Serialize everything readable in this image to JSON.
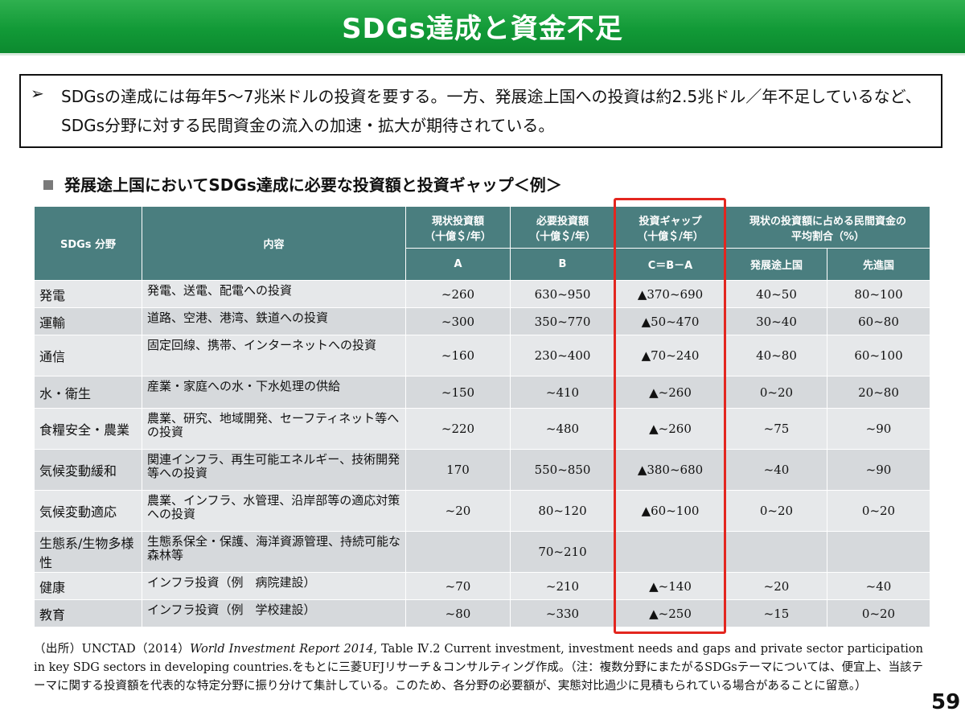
{
  "title": "SDGs達成と資金不足",
  "summary": {
    "arrow": "➢",
    "text": "SDGsの達成には毎年5～7兆米ドルの投資を要する。一方、発展途上国への投資は約2.5兆ドル／年不足しているなど、SDGs分野に対する民間資金の流入の加速・拡大が期待されている。"
  },
  "section_title": "発展途上国においてSDGs達成に必要な投資額と投資ギャップ＜例＞",
  "table": {
    "headers": {
      "field": "SDGs 分野",
      "content": "内容",
      "current": {
        "line1": "現状投資額",
        "line2": "（十億＄/年）",
        "code": "A"
      },
      "required": {
        "line1": "必要投資額",
        "line2": "（十億＄/年）",
        "code": "B"
      },
      "gap": {
        "line1": "投資ギャップ",
        "line2": "（十億＄/年）",
        "code": "C＝B－A"
      },
      "private": {
        "line1": "現状の投資額に占める民間資金の",
        "line2": "平均割合（%）",
        "developing": "発展途上国",
        "developed": "先進国"
      }
    },
    "rows": [
      {
        "field": "発電",
        "content": "発電、送電、配電への投資",
        "current": "~260",
        "required": "630~950",
        "gap": "▲370~690",
        "developing": "40~50",
        "developed": "80~100"
      },
      {
        "field": "運輸",
        "content": "道路、空港、港湾、鉄道への投資",
        "current": "~300",
        "required": "350~770",
        "gap": "▲50~470",
        "developing": "30~40",
        "developed": "60~80"
      },
      {
        "field": "通信",
        "content": "固定回線、携帯、インターネットへの投資",
        "current": "~160",
        "required": "230~400",
        "gap": "▲70~240",
        "developing": "40~80",
        "developed": "60~100"
      },
      {
        "field": "水・衛生",
        "content": "産業・家庭への水・下水処理の供給",
        "current": "~150",
        "required": "~410",
        "gap": "▲~260",
        "developing": "0~20",
        "developed": "20~80"
      },
      {
        "field": "食糧安全・農業",
        "content": "農業、研究、地域開発、セーフティネット等への投資",
        "current": "~220",
        "required": "~480",
        "gap": "▲~260",
        "developing": "~75",
        "developed": "~90"
      },
      {
        "field": "気候変動緩和",
        "content": "関連インフラ、再生可能エネルギー、技術開発等への投資",
        "current": "170",
        "required": "550~850",
        "gap": "▲380~680",
        "developing": "~40",
        "developed": "~90"
      },
      {
        "field": "気候変動適応",
        "content": "農業、インフラ、水管理、沿岸部等の適応対策への投資",
        "current": "~20",
        "required": "80~120",
        "gap": "▲60~100",
        "developing": "0~20",
        "developed": "0~20"
      },
      {
        "field": "生態系/生物多様性",
        "content": "生態系保全・保護、海洋資源管理、持続可能な森林等",
        "current": "",
        "required": "70~210",
        "gap": "",
        "developing": "",
        "developed": ""
      },
      {
        "field": "健康",
        "content": "インフラ投資（例　病院建設）",
        "current": "~70",
        "required": "~210",
        "gap": "▲~140",
        "developing": "~20",
        "developed": "~40"
      },
      {
        "field": "教育",
        "content": "インフラ投資（例　学校建設）",
        "current": "~80",
        "required": "~330",
        "gap": "▲~250",
        "developing": "~15",
        "developed": "0~20"
      }
    ]
  },
  "source": {
    "prefix": "（出所）UNCTAD（2014）",
    "italic": "World Investment Report 2014",
    "rest": ", Table Ⅳ.2 Current investment, investment needs and gaps and private sector participation in key SDG sectors in developing countries.をもとに三菱UFJリサーチ＆コンサルティング作成。（注：複数分野にまたがるSDGsテーマについては、便宜上、当該テーマに関する投資額を代表的な特定分野に振り分けて集計している。このため、各分野の必要額が、実態対比過少に見積もられている場合があることに留意。）"
  },
  "page_number": "59",
  "colors": {
    "header_green": "#129a37",
    "table_header": "#4a7e7f",
    "highlight_red": "#e3261f"
  }
}
